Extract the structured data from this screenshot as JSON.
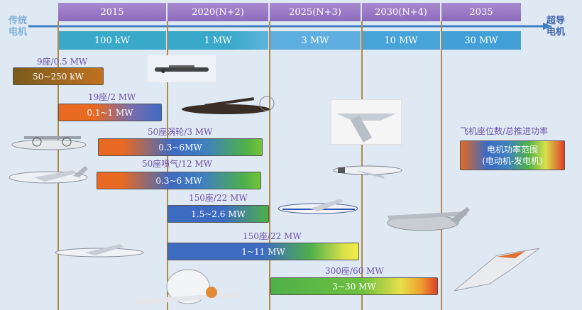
{
  "timeline": {
    "left_label": "传统\n电机",
    "right_label": "超导\n电机",
    "years": [
      "2015",
      "2020(N+2)",
      "2025(N+3)",
      "2030(N+4)",
      "2035"
    ],
    "powers": [
      "100 kW",
      "1 MW",
      "3 MW",
      "10 MW",
      "30 MW"
    ]
  },
  "legend": {
    "title": "飞机座位数/总推进功率",
    "box_text": "电机功率范围\n(电动机-发电机)"
  },
  "rows": [
    {
      "label": "9座/0.5 MW",
      "range": "50~250 kW"
    },
    {
      "label": "19座/2 MW",
      "range": "0.1~1 MW"
    },
    {
      "label": "50座涡轮/3 MW",
      "range": "0.3~6MW"
    },
    {
      "label": "50座喷气/12 MW",
      "range": "0.3~6 MW"
    },
    {
      "label": "150座/22 MW",
      "range": "1.5~2.6 MW"
    },
    {
      "label": "150座/22 MW",
      "range": "1~11 MW"
    },
    {
      "label": "300座/60 MW",
      "range": "3~30 MW"
    }
  ]
}
